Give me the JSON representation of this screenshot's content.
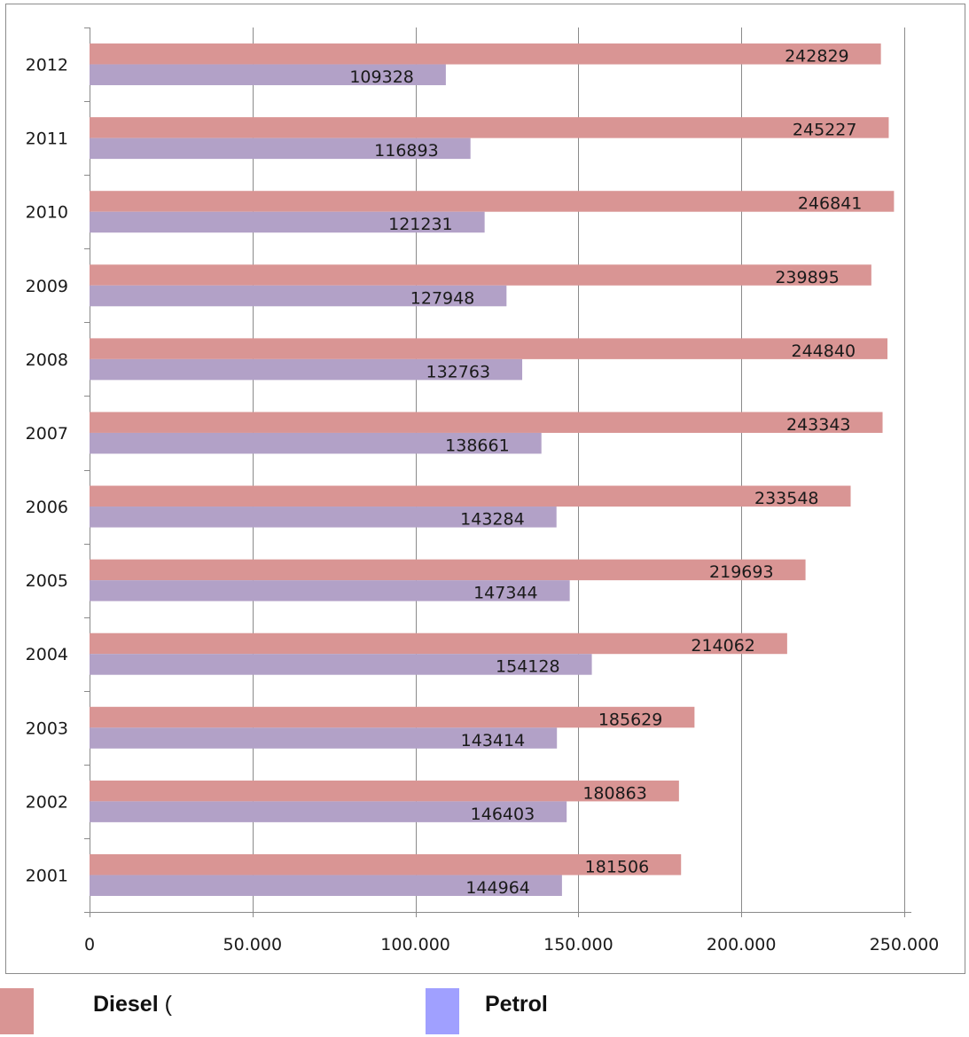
{
  "chart_data": {
    "type": "bar",
    "orientation": "horizontal",
    "categories": [
      "2001",
      "2002",
      "2003",
      "2004",
      "2005",
      "2006",
      "2007",
      "2008",
      "2009",
      "2010",
      "2011",
      "2012"
    ],
    "series": [
      {
        "name": "Diesel (",
        "color": "#d99594",
        "values": [
          181506,
          180863,
          185629,
          214062,
          219693,
          233548,
          243343,
          244840,
          239895,
          246841,
          245227,
          242829
        ],
        "labels": [
          "181506",
          "180863",
          "185629",
          "214062",
          "219693",
          "233548",
          "243343",
          "244840",
          "239895",
          "246841",
          "245227",
          "242829"
        ]
      },
      {
        "name": "Petrol",
        "color": "#b2a1c7",
        "values": [
          144964,
          146403,
          143414,
          154128,
          147344,
          143284,
          138661,
          132763,
          127948,
          121231,
          116893,
          109328
        ],
        "labels": [
          "144964",
          "146403",
          "143414",
          "154128",
          "147344",
          "143284",
          "138661",
          "132763",
          "127948",
          "121231",
          "116893",
          "109328"
        ]
      }
    ],
    "xlim": [
      0,
      250000
    ],
    "xticks": [
      0,
      50000,
      100000,
      150000,
      200000,
      250000
    ],
    "xtick_labels": [
      "0",
      "50.000",
      "100.000",
      "150.000",
      "200.000",
      "250.000"
    ],
    "grid": "vertical"
  },
  "legend": {
    "position": "bottom",
    "items": [
      {
        "label": "Diesel",
        "suffix": " (",
        "swatch_color": "#d99594"
      },
      {
        "label": "Petrol",
        "suffix": "",
        "swatch_color": "#a0a0ff"
      }
    ]
  }
}
